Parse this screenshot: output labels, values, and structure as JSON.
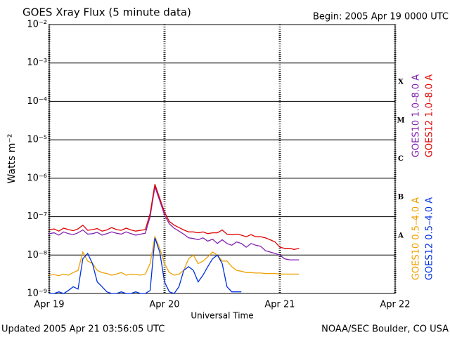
{
  "chart_data": {
    "type": "line",
    "title": "GOES Xray Flux (5 minute data)",
    "subtitle": "Begin:  2005 Apr 19 0000 UTC",
    "x_label": "Universal Time",
    "y_label": "Watts m⁻²",
    "footer_left": "Updated 2005 Apr 21 03:56:05 UTC",
    "footer_right": "NOAA/SEC Boulder, CO USA",
    "log_scale": true,
    "grid": true,
    "flare_classes": [
      "X",
      "M",
      "C",
      "B",
      "A"
    ],
    "x": [
      0,
      1,
      2,
      3,
      4,
      5,
      6,
      7,
      8,
      9,
      10,
      11,
      12,
      13,
      14,
      15,
      16,
      17,
      18,
      19,
      20,
      21,
      22,
      23,
      24,
      25,
      26,
      27,
      28,
      29,
      30,
      31,
      32,
      33,
      34,
      35,
      36,
      37,
      38,
      39,
      40,
      41,
      42,
      43,
      44,
      45,
      46,
      47,
      48,
      49,
      50,
      51,
      52
    ],
    "xlim": [
      0,
      72
    ],
    "xticks": [
      {
        "value": 0,
        "label": "Apr 19"
      },
      {
        "value": 24,
        "label": "Apr 20"
      },
      {
        "value": 48,
        "label": "Apr 21"
      },
      {
        "value": 72,
        "label": "Apr 22"
      }
    ],
    "ylim": [
      1e-09,
      0.01
    ],
    "yticks": [
      {
        "value": 0.01,
        "label": "10⁻²"
      },
      {
        "value": 0.001,
        "label": "10⁻³"
      },
      {
        "value": 0.0001,
        "label": "10⁻⁴"
      },
      {
        "value": 1e-05,
        "label": "10⁻⁵"
      },
      {
        "value": 1e-06,
        "label": "10⁻⁶"
      },
      {
        "value": 1e-07,
        "label": "10⁻⁷"
      },
      {
        "value": 1e-08,
        "label": "10⁻⁸"
      },
      {
        "value": 1e-09,
        "label": "10⁻⁹"
      }
    ],
    "series": [
      {
        "name": "GOES10 1.0–8.0 A",
        "color": "#8020b0",
        "values": [
          3.6e-08,
          3.8e-08,
          3.3e-08,
          4e-08,
          3.6e-08,
          3.4e-08,
          3.8e-08,
          4.5e-08,
          3.5e-08,
          3.6e-08,
          3.9e-08,
          3.3e-08,
          3.6e-08,
          4e-08,
          3.7e-08,
          3.5e-08,
          4e-08,
          3.6e-08,
          3.3e-08,
          3.5e-08,
          3.7e-08,
          1e-07,
          6e-07,
          2.6e-07,
          1.1e-07,
          6.5e-08,
          5e-08,
          4.2e-08,
          3.5e-08,
          2.8e-08,
          2.7e-08,
          2.5e-08,
          2.8e-08,
          2.3e-08,
          2.6e-08,
          2e-08,
          2.5e-08,
          2e-08,
          1.8e-08,
          2.2e-08,
          2e-08,
          1.6e-08,
          2e-08,
          1.8e-08,
          1.7e-08,
          1.3e-08,
          1.2e-08,
          1.1e-08,
          1e-08,
          8e-09,
          7.5e-09,
          7.5e-09,
          7.5e-09
        ]
      },
      {
        "name": "GOES12 1.0–8.0 A",
        "color": "#e00000",
        "values": [
          4.5e-08,
          4.8e-08,
          4.2e-08,
          5e-08,
          4.6e-08,
          4.3e-08,
          4.8e-08,
          6e-08,
          4.4e-08,
          4.6e-08,
          4.9e-08,
          4.2e-08,
          4.5e-08,
          5.2e-08,
          4.6e-08,
          4.4e-08,
          5e-08,
          4.5e-08,
          4.2e-08,
          4.4e-08,
          4.6e-08,
          1.2e-07,
          7e-07,
          3e-07,
          1.3e-07,
          7.5e-08,
          6e-08,
          5.2e-08,
          4.5e-08,
          4e-08,
          4e-08,
          3.8e-08,
          4e-08,
          3.6e-08,
          3.8e-08,
          3.8e-08,
          4.5e-08,
          3.5e-08,
          3.4e-08,
          3.5e-08,
          3.3e-08,
          3e-08,
          3.4e-08,
          3e-08,
          3e-08,
          2.8e-08,
          2.5e-08,
          2.2e-08,
          1.6e-08,
          1.5e-08,
          1.5e-08,
          1.4e-08,
          1.5e-08
        ]
      },
      {
        "name": "GOES10 0.5–4.0 A",
        "color": "#f0a000",
        "values": [
          3e-09,
          3.1e-09,
          2.9e-09,
          3.2e-09,
          3e-09,
          3.5e-09,
          4e-09,
          1.2e-08,
          7e-09,
          6e-09,
          4e-09,
          3.5e-09,
          3.3e-09,
          3e-09,
          3.2e-09,
          3.5e-09,
          3e-09,
          3.2e-09,
          3.1e-09,
          3e-09,
          3.2e-09,
          6e-09,
          3e-08,
          1.5e-08,
          6e-09,
          3.5e-09,
          3e-09,
          3.2e-09,
          4e-09,
          8e-09,
          1e-08,
          6e-09,
          7e-09,
          9e-09,
          1.2e-08,
          1e-08,
          7e-09,
          7e-09,
          5e-09,
          4e-09,
          3.8e-09,
          3.5e-09,
          3.5e-09,
          3.4e-09,
          3.4e-09,
          3.3e-09,
          3.3e-09,
          3.3e-09,
          3.2e-09,
          3.2e-09,
          3.2e-09,
          3.2e-09,
          3.2e-09
        ]
      },
      {
        "name": "GOES12 0.5–4.0 A",
        "color": "#0030e0",
        "values": [
          1e-09,
          1e-09,
          1.1e-09,
          1e-09,
          1.2e-09,
          1.5e-09,
          1.3e-09,
          8e-09,
          1.1e-08,
          6e-09,
          2e-09,
          1.5e-09,
          1.1e-09,
          1e-09,
          1e-09,
          1.1e-09,
          1e-09,
          1e-09,
          1.1e-09,
          1e-09,
          1e-09,
          1.2e-09,
          2.8e-08,
          1.2e-08,
          2e-09,
          1.1e-09,
          1e-09,
          1.5e-09,
          4e-09,
          5e-09,
          4e-09,
          2e-09,
          3e-09,
          5e-09,
          8e-09,
          1e-08,
          6e-09,
          1.5e-09,
          1.1e-09,
          1.1e-09,
          1.1e-09,
          null,
          null,
          null,
          null,
          null,
          null,
          null,
          null,
          null,
          null,
          null,
          null
        ]
      }
    ]
  }
}
